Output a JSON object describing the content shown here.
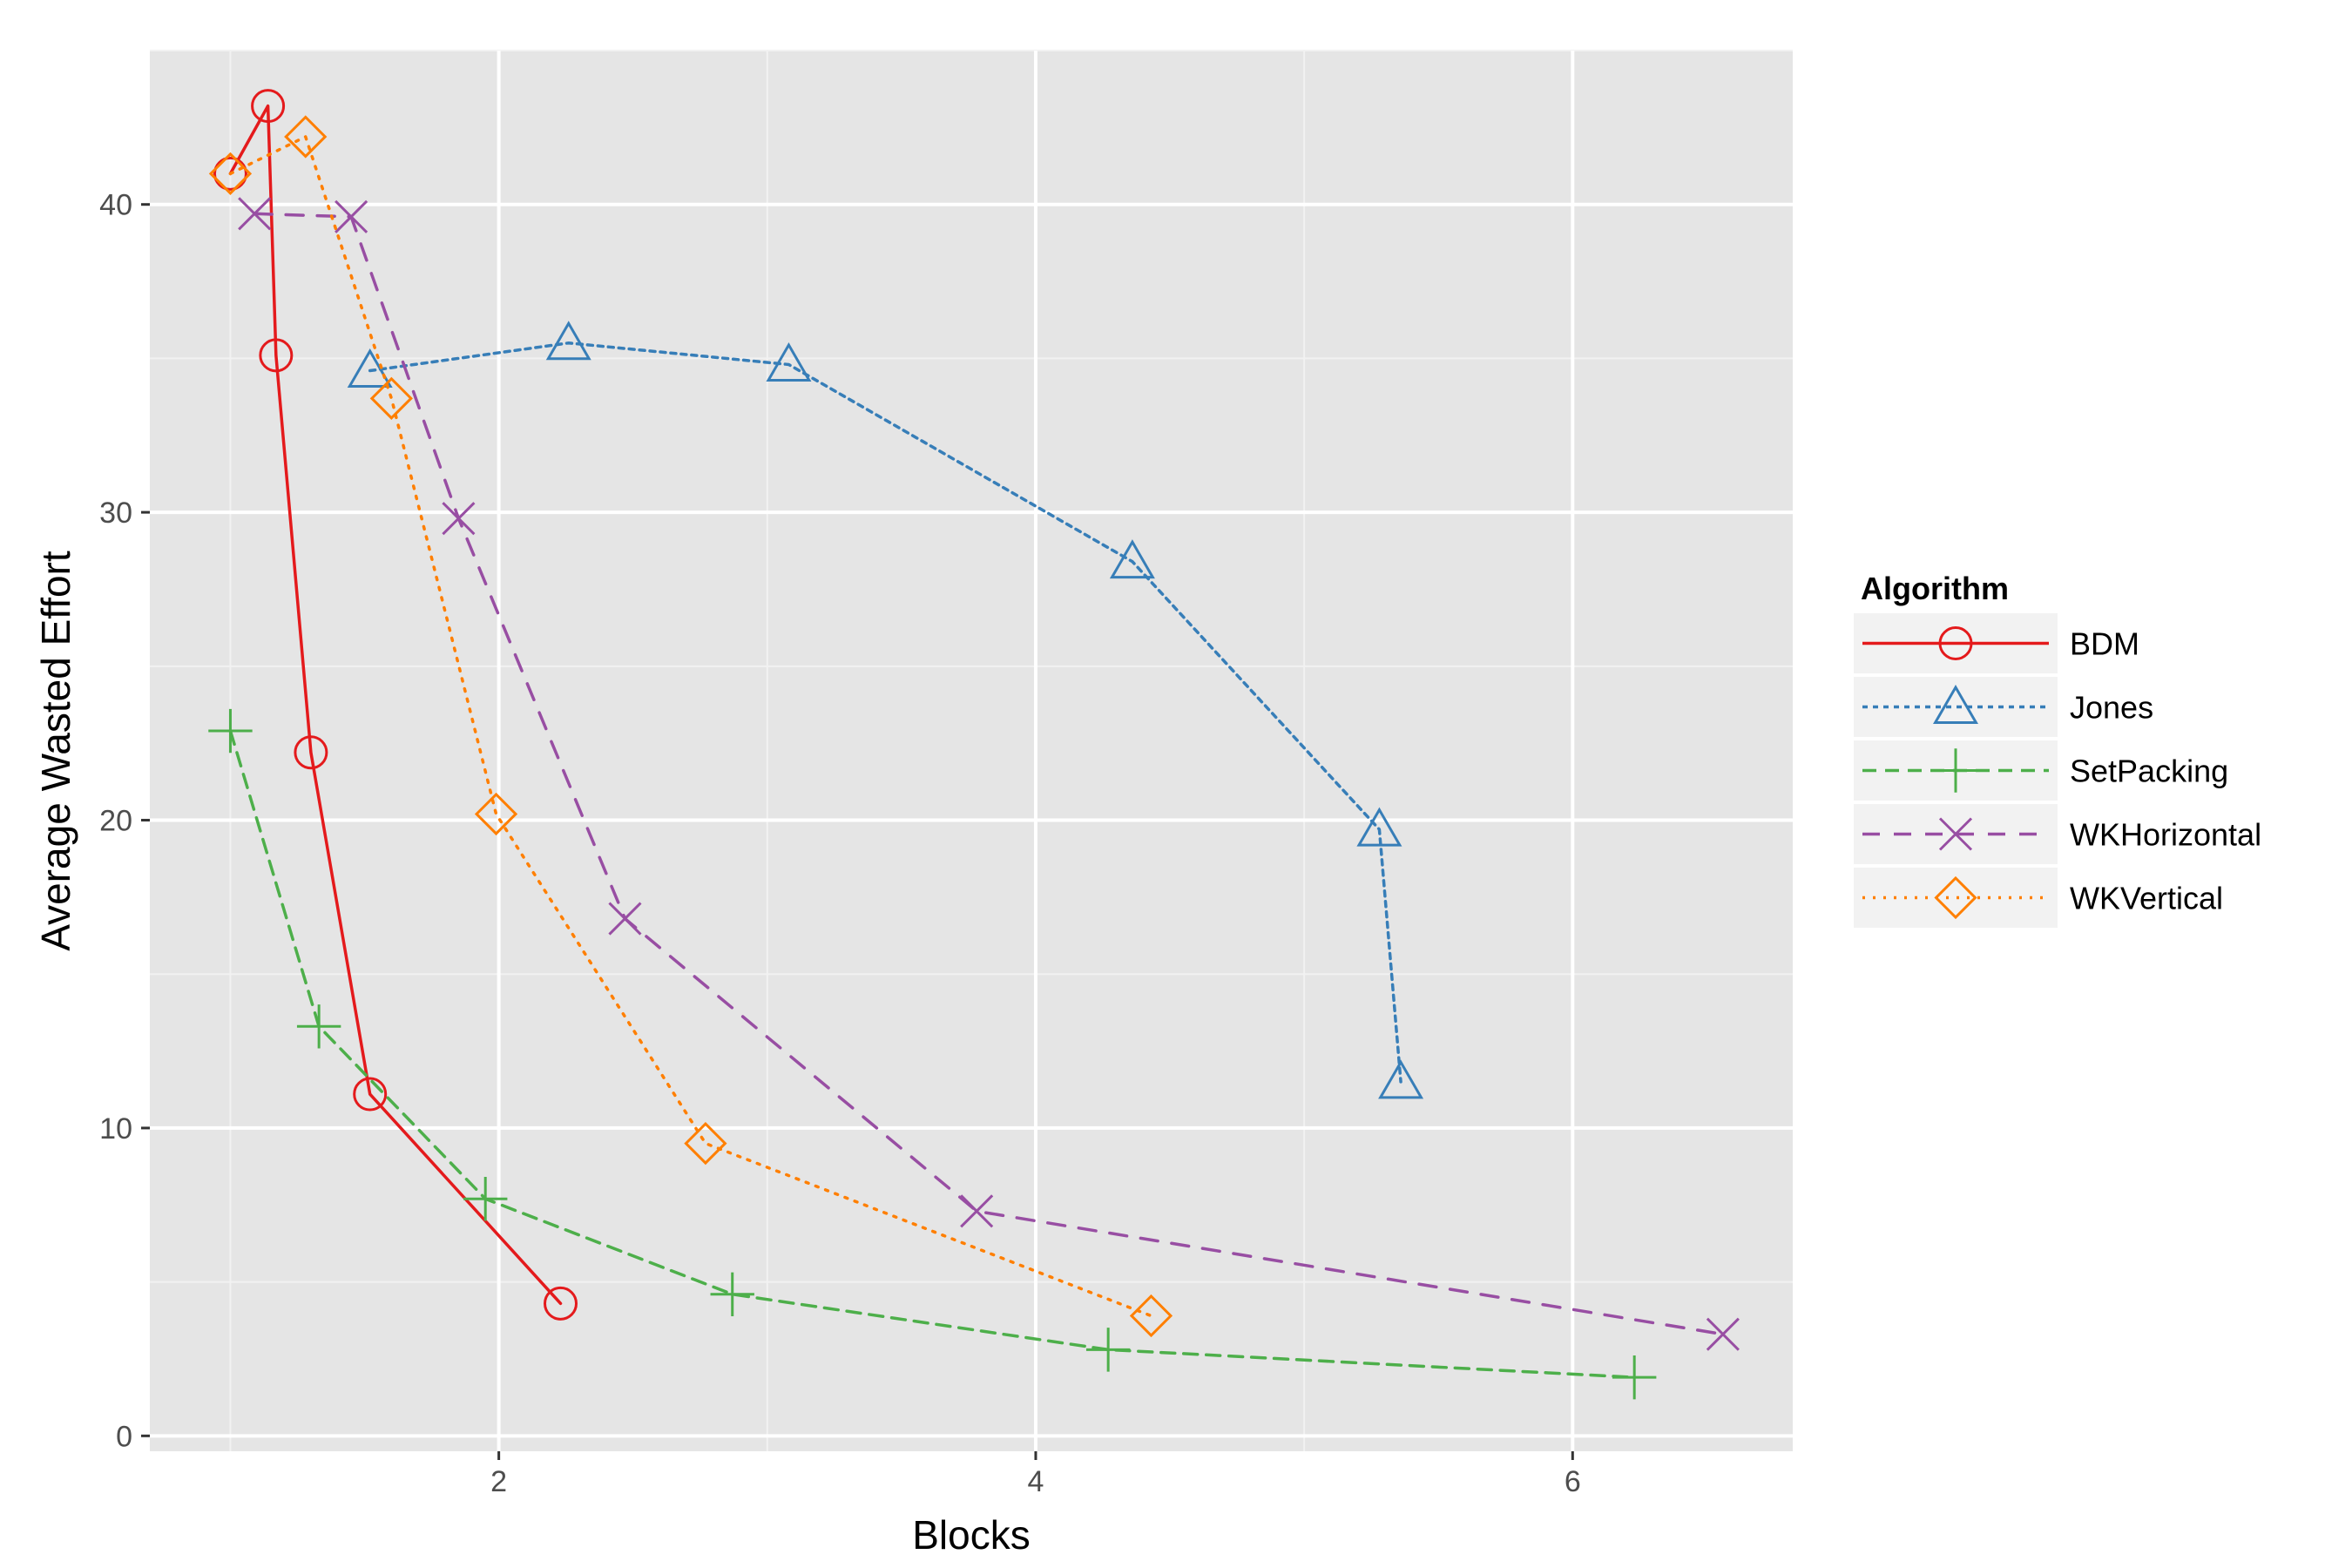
{
  "chart_data": {
    "type": "line",
    "title": "",
    "xlabel": "Blocks",
    "ylabel": "Average Wasted Effort",
    "xlim": [
      0.7,
      6.82
    ],
    "ylim": [
      -0.5,
      45.0
    ],
    "x_ticks": [
      2,
      4,
      6
    ],
    "y_ticks": [
      0,
      10,
      20,
      30,
      40
    ],
    "x_tick_labels": [
      "2",
      "4",
      "6"
    ],
    "y_tick_labels": [
      "0",
      "10",
      "20",
      "30",
      "40"
    ],
    "grid": true,
    "background": "#e5e5e5",
    "legend": {
      "title": "Algorithm",
      "position": "right"
    },
    "series": [
      {
        "name": "BDM",
        "color": "#e41a1c",
        "dash": "solid",
        "marker": "circle",
        "x": [
          1.0,
          1.14,
          1.17,
          1.3,
          1.52,
          2.23
        ],
        "y": [
          41.0,
          43.2,
          35.1,
          22.2,
          11.1,
          4.3
        ]
      },
      {
        "name": "Jones",
        "color": "#377eb8",
        "dash": "dotted",
        "marker": "triangle",
        "x": [
          1.52,
          2.26,
          3.08,
          4.36,
          5.28,
          5.36
        ],
        "y": [
          34.6,
          35.5,
          34.8,
          28.4,
          19.7,
          11.5
        ]
      },
      {
        "name": "SetPacking",
        "color": "#4daf4a",
        "dash": "dashed",
        "marker": "plus",
        "x": [
          1.0,
          1.33,
          1.95,
          2.87,
          4.27,
          6.23
        ],
        "y": [
          22.9,
          13.3,
          7.7,
          4.6,
          2.8,
          1.9
        ]
      },
      {
        "name": "WKHorizontal",
        "color": "#984ea3",
        "dash": "longdash",
        "marker": "cross",
        "x": [
          1.09,
          1.45,
          1.85,
          2.47,
          3.78,
          6.56
        ],
        "y": [
          39.7,
          39.6,
          29.8,
          16.8,
          7.3,
          3.3
        ]
      },
      {
        "name": "WKVertical",
        "color": "#ff7f00",
        "dash": "dotted-fine",
        "marker": "diamond",
        "x": [
          1.0,
          1.28,
          1.6,
          1.99,
          2.77,
          4.43
        ],
        "y": [
          41.0,
          42.2,
          33.7,
          20.2,
          9.5,
          3.9
        ]
      }
    ]
  }
}
